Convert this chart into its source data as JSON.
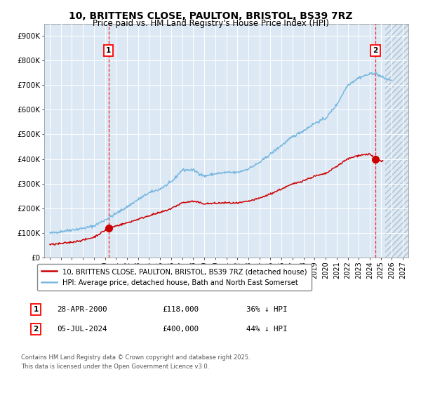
{
  "title": "10, BRITTENS CLOSE, PAULTON, BRISTOL, BS39 7RZ",
  "subtitle": "Price paid vs. HM Land Registry's House Price Index (HPI)",
  "title_fontsize": 10,
  "subtitle_fontsize": 8.5,
  "xlim": [
    1994.5,
    2027.5
  ],
  "ylim": [
    0,
    950000
  ],
  "yticks": [
    0,
    100000,
    200000,
    300000,
    400000,
    500000,
    600000,
    700000,
    800000,
    900000
  ],
  "ytick_labels": [
    "£0",
    "£100K",
    "£200K",
    "£300K",
    "£400K",
    "£500K",
    "£600K",
    "£700K",
    "£800K",
    "£900K"
  ],
  "xticks": [
    1995,
    1996,
    1997,
    1998,
    1999,
    2000,
    2001,
    2002,
    2003,
    2004,
    2005,
    2006,
    2007,
    2008,
    2009,
    2010,
    2011,
    2012,
    2013,
    2014,
    2015,
    2016,
    2017,
    2018,
    2019,
    2020,
    2021,
    2022,
    2023,
    2024,
    2025,
    2026,
    2027
  ],
  "hpi_line_color": "#7ab8e0",
  "price_line_color": "#cc0000",
  "marker1_x": 2000.32,
  "marker1_y": 118000,
  "marker2_x": 2024.51,
  "marker2_y": 400000,
  "annotation1_label": "1",
  "annotation2_label": "2",
  "legend_label1": "10, BRITTENS CLOSE, PAULTON, BRISTOL, BS39 7RZ (detached house)",
  "legend_label2": "HPI: Average price, detached house, Bath and North East Somerset",
  "info1_num": "1",
  "info1_date": "28-APR-2000",
  "info1_price": "£118,000",
  "info1_hpi": "36% ↓ HPI",
  "info2_num": "2",
  "info2_date": "05-JUL-2024",
  "info2_price": "£400,000",
  "info2_hpi": "44% ↓ HPI",
  "footnote_line1": "Contains HM Land Registry data © Crown copyright and database right 2025.",
  "footnote_line2": "This data is licensed under the Open Government Licence v3.0.",
  "bg_color": "#dce9f5",
  "grid_color": "#ffffff",
  "hatch_region_start": 2025.4
}
